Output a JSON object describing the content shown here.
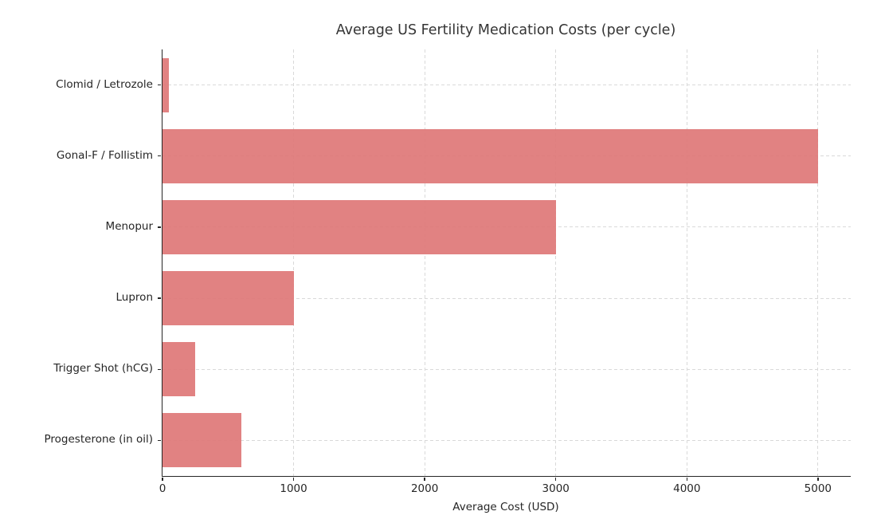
{
  "chart_data": {
    "type": "bar",
    "orientation": "horizontal",
    "title": "Average US Fertility Medication Costs (per cycle)",
    "categories": [
      "Clomid / Letrozole",
      "Gonal-F / Follistim",
      "Menopur",
      "Lupron",
      "Trigger Shot (hCG)",
      "Progesterone (in oil)"
    ],
    "values": [
      50,
      5000,
      3000,
      1000,
      250,
      600
    ],
    "xlabel": "Average Cost (USD)",
    "ylabel": "",
    "xlim": [
      0,
      5250
    ],
    "xticks": [
      0,
      1000,
      2000,
      3000,
      4000,
      5000
    ],
    "grid": "dashed, both axes, drawn under translucent bars",
    "legend": "none",
    "bar_color": "rgba(222, 116, 116, 0.9)",
    "grid_color": "#d9d9d9",
    "axis_color": "#262626",
    "text_color": "#262626",
    "background_color": "#ffffff"
  }
}
